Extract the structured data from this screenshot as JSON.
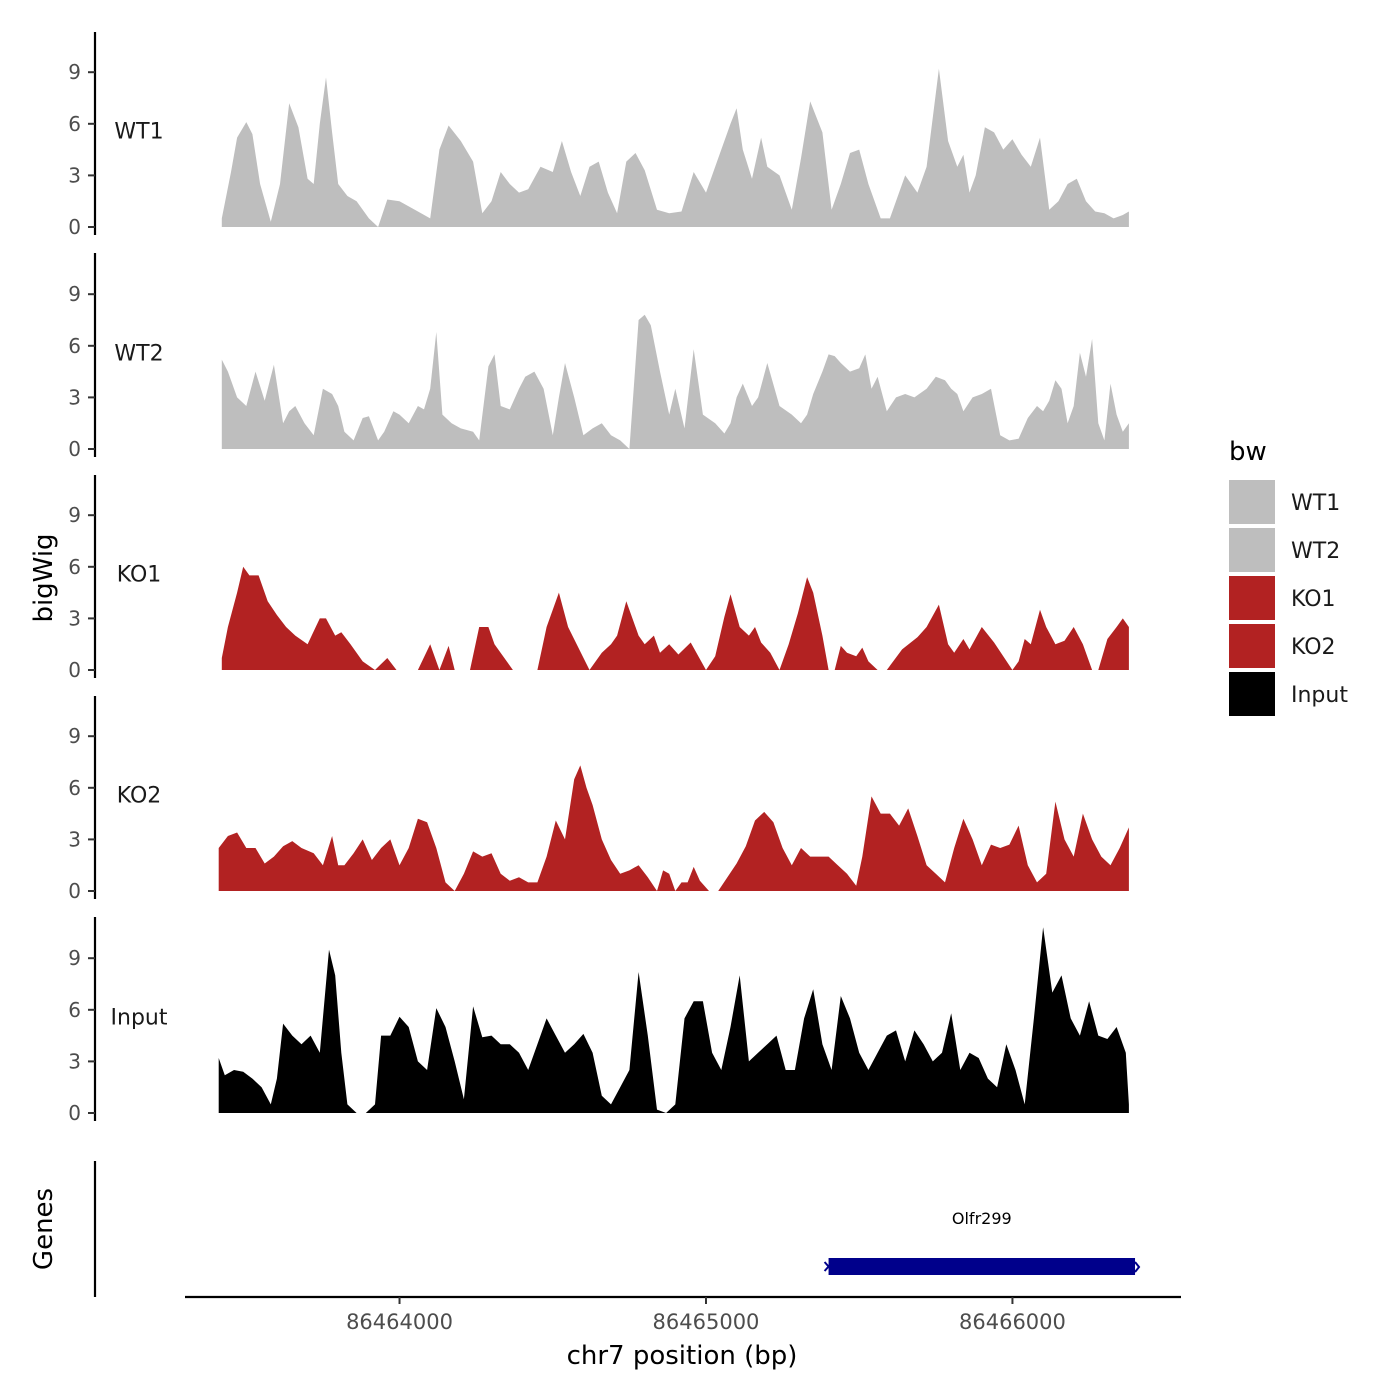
{
  "chart_data": {
    "type": "area",
    "xlabel": "chr7 position (bp)",
    "ylabel": "bigWig",
    "genes_label": "Genes",
    "legend_title": "bw",
    "legend_position": "right",
    "xlim": [
      86463300,
      86466550
    ],
    "x_ticks": [
      86464000,
      86465000,
      86466000
    ],
    "x_tick_labels": [
      "86464000",
      "86465000",
      "86466000"
    ],
    "ylim": [
      0,
      11.5
    ],
    "y_ticks": [
      0,
      3,
      6,
      9
    ],
    "y_tick_labels": [
      "0",
      "3",
      "6",
      "9"
    ],
    "colors": {
      "WT1": "#bebebe",
      "WT2": "#bebebe",
      "KO1": "#b22222",
      "KO2": "#b22222",
      "Input": "#000000",
      "gene": "#00008b"
    },
    "series": [
      {
        "name": "WT1",
        "x": [
          86463420,
          86463450,
          86463470,
          86463500,
          86463520,
          86463545,
          86463580,
          86463610,
          86463640,
          86463670,
          86463700,
          86463720,
          86463740,
          86463760,
          86463780,
          86463800,
          86463830,
          86463860,
          86463900,
          86463930,
          86463960,
          86464000,
          86464050,
          86464100,
          86464130,
          86464160,
          86464200,
          86464240,
          86464270,
          86464300,
          86464330,
          86464360,
          86464390,
          86464420,
          86464460,
          86464500,
          86464530,
          86464560,
          86464590,
          86464620,
          86464650,
          86464680,
          86464710,
          86464740,
          86464770,
          86464800,
          86464840,
          86464880,
          86464920,
          86464960,
          86465000,
          86465040,
          86465080,
          86465100,
          86465120,
          86465150,
          86465180,
          86465200,
          86465240,
          86465280,
          86465310,
          86465340,
          86465380,
          86465410,
          86465440,
          86465470,
          86465500,
          86465530,
          86465570,
          86465600,
          86465650,
          86465690,
          86465720,
          86465760,
          86465790,
          86465820,
          86465840,
          86465860,
          86465880,
          86465910,
          86465940,
          86465970,
          86466000,
          86466030,
          86466060,
          86466090,
          86466120,
          86466150,
          86466180,
          86466210,
          86466240,
          86466270,
          86466300,
          86466330,
          86466360,
          86466380
        ],
        "values": [
          0.5,
          3.2,
          5.2,
          6.1,
          5.4,
          2.5,
          0.3,
          2.5,
          7.2,
          5.8,
          2.8,
          2.5,
          6.0,
          8.7,
          5.5,
          2.5,
          1.8,
          1.5,
          0.5,
          0.0,
          1.6,
          1.5,
          1.0,
          0.5,
          4.5,
          5.9,
          5.0,
          3.8,
          0.8,
          1.5,
          3.2,
          2.5,
          2.0,
          2.2,
          3.5,
          3.2,
          5.0,
          3.2,
          1.8,
          3.5,
          3.8,
          2.0,
          0.8,
          3.8,
          4.3,
          3.3,
          1.0,
          0.8,
          0.9,
          3.2,
          2.0,
          4.0,
          6.0,
          6.9,
          4.5,
          2.8,
          5.2,
          3.5,
          3.0,
          1.0,
          4.0,
          7.3,
          5.5,
          1.0,
          2.5,
          4.3,
          4.5,
          2.5,
          0.5,
          0.5,
          3.0,
          2.0,
          3.5,
          9.2,
          5.0,
          3.5,
          4.2,
          2.0,
          3.0,
          5.8,
          5.5,
          4.5,
          5.1,
          4.2,
          3.5,
          5.2,
          1.0,
          1.5,
          2.5,
          2.8,
          1.5,
          0.9,
          0.8,
          0.5,
          0.7,
          0.9
        ]
      },
      {
        "name": "WT2",
        "x": [
          86463420,
          86463440,
          86463470,
          86463500,
          86463530,
          86463560,
          86463590,
          86463620,
          86463640,
          86463660,
          86463690,
          86463720,
          86463750,
          86463780,
          86463800,
          86463820,
          86463850,
          86463880,
          86463900,
          86463930,
          86463950,
          86463980,
          86464000,
          86464030,
          86464060,
          86464080,
          86464100,
          86464120,
          86464140,
          86464170,
          86464200,
          86464240,
          86464260,
          86464290,
          86464310,
          86464330,
          86464360,
          86464390,
          86464410,
          86464440,
          86464470,
          86464500,
          86464520,
          86464540,
          86464570,
          86464600,
          86464630,
          86464660,
          86464690,
          86464720,
          86464750,
          86464780,
          86464800,
          86464820,
          86464850,
          86464880,
          86464900,
          86464930,
          86464960,
          86464990,
          86465030,
          86465060,
          86465080,
          86465100,
          86465120,
          86465150,
          86465170,
          86465200,
          86465240,
          86465280,
          86465310,
          86465330,
          86465350,
          86465380,
          86465400,
          86465420,
          86465440,
          86465470,
          86465500,
          86465520,
          86465540,
          86465560,
          86465590,
          86465620,
          86465650,
          86465680,
          86465720,
          86465750,
          86465780,
          86465800,
          86465820,
          86465840,
          86465870,
          86465900,
          86465930,
          86465960,
          86465990,
          86466020,
          86466050,
          86466080,
          86466100,
          86466120,
          86466140,
          86466160,
          86466180,
          86466200,
          86466220,
          86466240,
          86466260,
          86466280,
          86466300,
          86466320,
          86466340,
          86466360,
          86466380
        ],
        "values": [
          5.2,
          4.5,
          3.0,
          2.5,
          4.5,
          2.8,
          4.9,
          1.5,
          2.2,
          2.5,
          1.5,
          0.8,
          3.5,
          3.2,
          2.5,
          1.0,
          0.5,
          1.8,
          1.9,
          0.5,
          1.0,
          2.2,
          2.0,
          1.5,
          2.5,
          2.3,
          3.5,
          6.8,
          2.0,
          1.5,
          1.2,
          1.0,
          0.5,
          4.8,
          5.5,
          2.5,
          2.3,
          3.5,
          4.2,
          4.5,
          3.5,
          0.8,
          3.0,
          5.0,
          3.0,
          0.8,
          1.2,
          1.5,
          0.8,
          0.5,
          0.0,
          7.5,
          7.8,
          7.2,
          4.5,
          2.0,
          3.5,
          1.2,
          5.8,
          2.0,
          1.5,
          0.9,
          1.5,
          3.0,
          3.8,
          2.5,
          3.0,
          5.0,
          2.5,
          2.0,
          1.5,
          2.0,
          3.2,
          4.5,
          5.5,
          5.4,
          5.0,
          4.5,
          4.7,
          5.5,
          3.5,
          4.2,
          2.2,
          3.0,
          3.2,
          3.0,
          3.5,
          4.2,
          4.0,
          3.5,
          3.2,
          2.2,
          3.0,
          3.2,
          3.5,
          0.8,
          0.5,
          0.6,
          1.8,
          2.5,
          2.2,
          2.8,
          4.0,
          3.5,
          1.5,
          2.5,
          5.6,
          4.2,
          6.4,
          1.5,
          0.5,
          3.8,
          2.0,
          1.0,
          1.5
        ]
      },
      {
        "name": "KO1",
        "x": [
          86463420,
          86463440,
          86463470,
          86463490,
          86463510,
          86463540,
          86463570,
          86463600,
          86463630,
          86463660,
          86463700,
          86463740,
          86463760,
          86463790,
          86463810,
          86463840,
          86463880,
          86463920,
          86463960,
          86463990,
          86464060,
          86464100,
          86464130,
          86464160,
          86464180,
          86464230,
          86464260,
          86464290,
          86464310,
          86464370,
          86464400,
          86464450,
          86464480,
          86464520,
          86464550,
          86464620,
          86464660,
          86464690,
          86464710,
          86464740,
          86464780,
          86464800,
          86464830,
          86464850,
          86464880,
          86464910,
          86464950,
          86465000,
          86465030,
          86465060,
          86465080,
          86465110,
          86465140,
          86465160,
          86465180,
          86465210,
          86465240,
          86465270,
          86465300,
          86465330,
          86465350,
          86465380,
          86465400,
          86465420,
          86465440,
          86465460,
          86465490,
          86465510,
          86465530,
          86465560,
          86465590,
          86465640,
          86465690,
          86465720,
          86465760,
          86465790,
          86465810,
          86465840,
          86465860,
          86465900,
          86465940,
          86466000,
          86466020,
          86466040,
          86466060,
          86466090,
          86466110,
          86466140,
          86466170,
          86466200,
          86466230,
          86466260,
          86466280,
          86466310,
          86466340,
          86466360,
          86466380
        ],
        "values": [
          0.7,
          2.5,
          4.5,
          6.0,
          5.5,
          5.5,
          4.0,
          3.2,
          2.5,
          2.0,
          1.5,
          3.0,
          3.0,
          2.0,
          2.2,
          1.5,
          0.5,
          0.0,
          0.7,
          0.0,
          0.0,
          1.5,
          0.0,
          1.4,
          0.0,
          0.0,
          2.5,
          2.5,
          1.5,
          0.0,
          0.0,
          0.0,
          2.5,
          4.5,
          2.5,
          0.0,
          1.0,
          1.5,
          2.0,
          4.0,
          2.0,
          1.5,
          2.0,
          1.0,
          1.5,
          0.9,
          1.6,
          0.0,
          0.8,
          3.1,
          4.4,
          2.5,
          2.0,
          2.5,
          1.6,
          1.0,
          0.0,
          1.5,
          3.3,
          5.4,
          4.5,
          2.0,
          0.0,
          0.0,
          1.4,
          1.0,
          0.8,
          1.3,
          0.5,
          0.0,
          0.0,
          1.2,
          1.9,
          2.5,
          3.8,
          1.5,
          1.0,
          1.8,
          1.2,
          2.5,
          1.6,
          0.0,
          0.5,
          1.8,
          1.5,
          3.5,
          2.5,
          1.5,
          1.7,
          2.5,
          1.5,
          0.0,
          0.0,
          1.8,
          2.5,
          3.0,
          2.5
        ]
      },
      {
        "name": "KO2",
        "x": [
          86463410,
          86463440,
          86463470,
          86463500,
          86463530,
          86463560,
          86463590,
          86463620,
          86463650,
          86463680,
          86463720,
          86463750,
          86463780,
          86463800,
          86463820,
          86463850,
          86463880,
          86463910,
          86463940,
          86463970,
          86464000,
          86464030,
          86464060,
          86464090,
          86464120,
          86464150,
          86464180,
          86464210,
          86464240,
          86464270,
          86464300,
          86464330,
          86464360,
          86464390,
          86464420,
          86464450,
          86464480,
          86464510,
          86464540,
          86464570,
          86464590,
          86464610,
          86464630,
          86464660,
          86464690,
          86464720,
          86464750,
          86464780,
          86464810,
          86464840,
          86464860,
          86464880,
          86464900,
          86464920,
          86464940,
          86464960,
          86464980,
          86465010,
          86465040,
          86465070,
          86465100,
          86465130,
          86465160,
          86465190,
          86465220,
          86465250,
          86465280,
          86465310,
          86465340,
          86465370,
          86465400,
          86465430,
          86465460,
          86465490,
          86465510,
          86465540,
          86465570,
          86465600,
          86465630,
          86465660,
          86465690,
          86465720,
          86465750,
          86465780,
          86465810,
          86465840,
          86465870,
          86465900,
          86465930,
          86465960,
          86465990,
          86466020,
          86466050,
          86466080,
          86466110,
          86466140,
          86466170,
          86466200,
          86466230,
          86466260,
          86466290,
          86466320,
          86466350,
          86466380
        ],
        "values": [
          2.5,
          3.2,
          3.4,
          2.5,
          2.5,
          1.6,
          2.0,
          2.6,
          2.9,
          2.5,
          2.2,
          1.5,
          3.2,
          1.5,
          1.5,
          2.2,
          3.0,
          1.8,
          2.5,
          3.0,
          1.5,
          2.5,
          4.2,
          4.0,
          2.5,
          0.5,
          0.0,
          1.0,
          2.3,
          2.0,
          2.2,
          1.0,
          0.6,
          0.8,
          0.5,
          0.5,
          2.0,
          4.1,
          3.0,
          6.5,
          7.3,
          6.0,
          5.0,
          3.0,
          1.8,
          1.0,
          1.2,
          1.5,
          0.8,
          0.0,
          1.2,
          1.0,
          0.0,
          0.5,
          0.5,
          1.4,
          0.6,
          0.0,
          0.0,
          0.8,
          1.6,
          2.6,
          4.1,
          4.6,
          4.0,
          2.5,
          1.5,
          2.5,
          2.0,
          2.0,
          2.0,
          1.5,
          1.0,
          0.3,
          2.0,
          5.5,
          4.5,
          4.5,
          3.8,
          4.8,
          3.2,
          1.5,
          1.0,
          0.5,
          2.5,
          4.2,
          3.0,
          1.5,
          2.7,
          2.5,
          2.7,
          3.8,
          1.5,
          0.5,
          1.0,
          5.2,
          3.0,
          2.0,
          4.5,
          3.0,
          2.0,
          1.5,
          2.5,
          3.7
        ]
      },
      {
        "name": "Input",
        "x": [
          86463410,
          86463430,
          86463460,
          86463490,
          86463520,
          86463550,
          86463580,
          86463600,
          86463620,
          86463650,
          86463680,
          86463710,
          86463740,
          86463770,
          86463790,
          86463810,
          86463830,
          86463860,
          86463890,
          86463920,
          86463940,
          86463970,
          86464000,
          86464030,
          86464060,
          86464090,
          86464120,
          86464150,
          86464180,
          86464210,
          86464240,
          86464270,
          86464300,
          86464330,
          86464360,
          86464390,
          86464420,
          86464450,
          86464480,
          86464510,
          86464540,
          86464570,
          86464600,
          86464630,
          86464660,
          86464690,
          86464720,
          86464750,
          86464780,
          86464810,
          86464840,
          86464870,
          86464900,
          86464930,
          86464960,
          86464990,
          86465020,
          86465050,
          86465080,
          86465110,
          86465140,
          86465170,
          86465200,
          86465230,
          86465260,
          86465290,
          86465320,
          86465350,
          86465380,
          86465410,
          86465440,
          86465470,
          86465500,
          86465530,
          86465560,
          86465590,
          86465620,
          86465650,
          86465680,
          86465710,
          86465740,
          86465770,
          86465800,
          86465830,
          86465860,
          86465890,
          86465920,
          86465950,
          86465980,
          86466010,
          86466040,
          86466070,
          86466100,
          86466130,
          86466160,
          86466190,
          86466220,
          86466250,
          86466280,
          86466310,
          86466340,
          86466370,
          86466380
        ],
        "values": [
          3.2,
          2.2,
          2.5,
          2.4,
          2.0,
          1.5,
          0.5,
          2.0,
          5.2,
          4.5,
          4.0,
          4.5,
          3.5,
          9.5,
          8.0,
          3.5,
          0.5,
          0.0,
          0.0,
          0.5,
          4.5,
          4.5,
          5.6,
          5.0,
          3.0,
          2.5,
          6.1,
          5.0,
          3.0,
          0.8,
          6.2,
          4.4,
          4.5,
          4.0,
          4.0,
          3.5,
          2.5,
          4.0,
          5.5,
          4.5,
          3.5,
          4.0,
          4.6,
          3.5,
          1.0,
          0.5,
          1.5,
          2.5,
          8.2,
          4.5,
          0.2,
          0.0,
          0.5,
          5.5,
          6.5,
          6.5,
          3.5,
          2.5,
          5.0,
          8.0,
          3.0,
          3.5,
          4.0,
          4.5,
          2.5,
          2.5,
          5.5,
          7.2,
          4.0,
          2.5,
          6.8,
          5.5,
          3.5,
          2.5,
          3.5,
          4.5,
          4.8,
          3.0,
          4.8,
          4.0,
          3.0,
          3.5,
          5.8,
          2.5,
          3.5,
          3.2,
          2.0,
          1.5,
          4.0,
          2.5,
          0.5,
          5.5,
          10.8,
          7.0,
          8.0,
          5.5,
          4.5,
          6.5,
          4.5,
          4.3,
          5.0,
          3.5,
          0.5
        ]
      }
    ],
    "genes": [
      {
        "name": "Olfr299",
        "start": 86465400,
        "end": 86466400
      }
    ]
  }
}
